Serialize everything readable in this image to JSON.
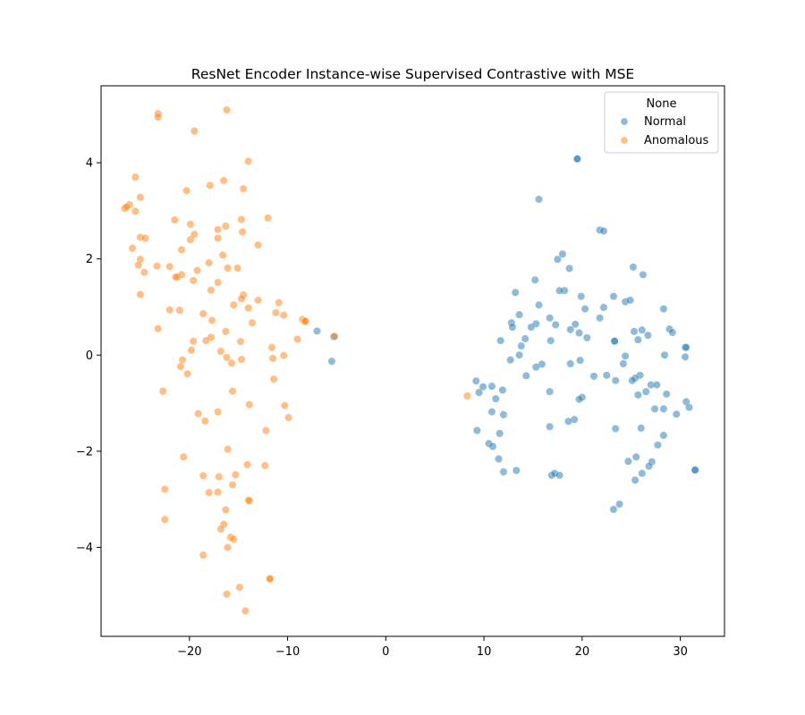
{
  "chart_data": {
    "type": "scatter",
    "title": "ResNet Encoder Instance-wise Supervised Contrastive with MSE",
    "xlabel": "",
    "ylabel": "",
    "xlim": [
      -29,
      34.5
    ],
    "ylim": [
      -5.85,
      5.6
    ],
    "xticks": [
      -20,
      -10,
      0,
      10,
      20,
      30
    ],
    "yticks": [
      -4,
      -2,
      0,
      2,
      4
    ],
    "x_tick_labels": [
      "−20",
      "−10",
      "0",
      "10",
      "20",
      "30"
    ],
    "y_tick_labels": [
      "−4",
      "−2",
      "0",
      "2",
      "4"
    ],
    "grid": false,
    "legend": {
      "title": "None",
      "placement": "top-right",
      "entries": [
        "Normal",
        "Anomalous"
      ]
    },
    "colors": {
      "Normal": "#1f77b4",
      "Anomalous": "#ff7f0e"
    },
    "marker_alpha": 0.5,
    "series": [
      {
        "name": "Normal",
        "points": [
          [
            19.5,
            4.08
          ],
          [
            19.5,
            4.08
          ],
          [
            15.6,
            3.24
          ],
          [
            21.8,
            2.6
          ],
          [
            22.2,
            2.58
          ],
          [
            18.0,
            2.1
          ],
          [
            17.5,
            1.99
          ],
          [
            25.2,
            1.83
          ],
          [
            18.7,
            1.8
          ],
          [
            26.2,
            1.67
          ],
          [
            15.2,
            1.56
          ],
          [
            13.2,
            1.3
          ],
          [
            18.2,
            1.34
          ],
          [
            17.7,
            1.34
          ],
          [
            19.9,
            1.22
          ],
          [
            23.2,
            1.22
          ],
          [
            24.4,
            1.11
          ],
          [
            24.9,
            1.14
          ],
          [
            15.6,
            1.04
          ],
          [
            20.3,
            0.96
          ],
          [
            22.2,
            0.99
          ],
          [
            28.3,
            0.96
          ],
          [
            13.6,
            0.84
          ],
          [
            16.7,
            0.77
          ],
          [
            21.8,
            0.77
          ],
          [
            12.8,
            0.67
          ],
          [
            15.3,
            0.65
          ],
          [
            17.3,
            0.63
          ],
          [
            19.3,
            0.64
          ],
          [
            12.9,
            0.58
          ],
          [
            14.8,
            0.58
          ],
          [
            18.8,
            0.53
          ],
          [
            25.3,
            0.49
          ],
          [
            26.1,
            0.52
          ],
          [
            28.9,
            0.54
          ],
          [
            19.7,
            0.46
          ],
          [
            29.2,
            0.47
          ],
          [
            26.7,
            0.41
          ],
          [
            14.2,
            0.34
          ],
          [
            20.5,
            0.36
          ],
          [
            11.7,
            0.3
          ],
          [
            16.8,
            0.3
          ],
          [
            23.3,
            0.29
          ],
          [
            23.3,
            0.29
          ],
          [
            25.7,
            0.32
          ],
          [
            13.8,
            0.19
          ],
          [
            30.5,
            0.16
          ],
          [
            30.6,
            0.16
          ],
          [
            13.6,
            0.0
          ],
          [
            24.4,
            -0.02
          ],
          [
            28.4,
            0.0
          ],
          [
            30.5,
            -0.04
          ],
          [
            12.7,
            -0.1
          ],
          [
            19.8,
            -0.11
          ],
          [
            15.9,
            -0.19
          ],
          [
            18.8,
            -0.18
          ],
          [
            24.2,
            -0.18
          ],
          [
            15.3,
            -0.25
          ],
          [
            21.2,
            -0.44
          ],
          [
            14.3,
            -0.43
          ],
          [
            22.5,
            -0.42
          ],
          [
            25.9,
            -0.42
          ],
          [
            9.2,
            -0.54
          ],
          [
            23.4,
            -0.53
          ],
          [
            25.4,
            -0.48
          ],
          [
            25.1,
            -0.53
          ],
          [
            9.9,
            -0.66
          ],
          [
            10.8,
            -0.65
          ],
          [
            27.0,
            -0.62
          ],
          [
            27.6,
            -0.62
          ],
          [
            9.5,
            -0.78
          ],
          [
            11.9,
            -0.73
          ],
          [
            16.7,
            -0.76
          ],
          [
            26.5,
            -0.76
          ],
          [
            20.0,
            -0.88
          ],
          [
            19.7,
            -0.92
          ],
          [
            25.7,
            -0.83
          ],
          [
            28.6,
            -0.81
          ],
          [
            11.2,
            -0.91
          ],
          [
            30.6,
            -0.97
          ],
          [
            10.8,
            -1.18
          ],
          [
            12.0,
            -1.24
          ],
          [
            19.2,
            -1.34
          ],
          [
            18.6,
            -1.38
          ],
          [
            27.4,
            -1.12
          ],
          [
            28.3,
            -1.12
          ],
          [
            29.6,
            -1.23
          ],
          [
            30.9,
            -1.09
          ],
          [
            9.3,
            -1.57
          ],
          [
            11.6,
            -1.63
          ],
          [
            16.7,
            -1.49
          ],
          [
            23.4,
            -1.53
          ],
          [
            26.0,
            -1.52
          ],
          [
            28.3,
            -1.67
          ],
          [
            10.5,
            -1.84
          ],
          [
            10.9,
            -1.9
          ],
          [
            27.7,
            -1.87
          ],
          [
            11.5,
            -2.16
          ],
          [
            24.7,
            -2.21
          ],
          [
            25.5,
            -2.12
          ],
          [
            27.1,
            -2.22
          ],
          [
            26.8,
            -2.31
          ],
          [
            12.0,
            -2.43
          ],
          [
            13.3,
            -2.4
          ],
          [
            16.9,
            -2.5
          ],
          [
            17.2,
            -2.46
          ],
          [
            17.7,
            -2.5
          ],
          [
            26.1,
            -2.46
          ],
          [
            25.4,
            -2.6
          ],
          [
            31.5,
            -2.39
          ],
          [
            31.5,
            -2.39
          ],
          [
            23.8,
            -3.1
          ],
          [
            23.2,
            -3.21
          ],
          [
            -7.0,
            0.5
          ],
          [
            -5.3,
            0.38
          ],
          [
            -5.5,
            -0.13
          ]
        ]
      },
      {
        "name": "Anomalous",
        "points": [
          [
            -16.2,
            5.1
          ],
          [
            -23.2,
            5.02
          ],
          [
            -23.2,
            4.95
          ],
          [
            -19.5,
            4.66
          ],
          [
            -14.0,
            4.03
          ],
          [
            -25.5,
            3.7
          ],
          [
            -16.5,
            3.63
          ],
          [
            -14.5,
            3.46
          ],
          [
            -17.9,
            3.53
          ],
          [
            -20.3,
            3.42
          ],
          [
            -25.0,
            3.28
          ],
          [
            -26.1,
            3.13
          ],
          [
            -26.6,
            3.05
          ],
          [
            -26.4,
            3.08
          ],
          [
            -25.5,
            2.99
          ],
          [
            -12.0,
            2.85
          ],
          [
            -14.7,
            2.82
          ],
          [
            -21.5,
            2.81
          ],
          [
            -19.9,
            2.72
          ],
          [
            -16.3,
            2.68
          ],
          [
            -17.1,
            2.61
          ],
          [
            -14.6,
            2.56
          ],
          [
            -19.5,
            2.51
          ],
          [
            -25.0,
            2.45
          ],
          [
            -24.5,
            2.43
          ],
          [
            -19.9,
            2.4
          ],
          [
            -17.1,
            2.43
          ],
          [
            -13.0,
            2.29
          ],
          [
            -25.8,
            2.22
          ],
          [
            -20.8,
            2.19
          ],
          [
            -16.6,
            2.08
          ],
          [
            -25.0,
            1.99
          ],
          [
            -18.0,
            1.92
          ],
          [
            -25.2,
            1.87
          ],
          [
            -23.3,
            1.85
          ],
          [
            -22.0,
            1.84
          ],
          [
            -16.1,
            1.81
          ],
          [
            -15.1,
            1.81
          ],
          [
            -19.2,
            1.76
          ],
          [
            -24.6,
            1.72
          ],
          [
            -20.8,
            1.67
          ],
          [
            -21.2,
            1.63
          ],
          [
            -21.4,
            1.62
          ],
          [
            -19.6,
            1.55
          ],
          [
            -17.1,
            1.51
          ],
          [
            -17.8,
            1.35
          ],
          [
            -25.0,
            1.26
          ],
          [
            -14.5,
            1.25
          ],
          [
            -14.7,
            1.17
          ],
          [
            -13.0,
            1.14
          ],
          [
            -10.9,
            1.09
          ],
          [
            -15.5,
            1.04
          ],
          [
            -14.0,
            0.98
          ],
          [
            -22.0,
            0.94
          ],
          [
            -21.0,
            0.93
          ],
          [
            -11.2,
            0.88
          ],
          [
            -18.6,
            0.86
          ],
          [
            -10.4,
            0.83
          ],
          [
            -8.5,
            0.74
          ],
          [
            -8.2,
            0.71
          ],
          [
            -8.2,
            0.7
          ],
          [
            -17.7,
            0.72
          ],
          [
            -13.6,
            0.67
          ],
          [
            -23.2,
            0.55
          ],
          [
            -16.3,
            0.49
          ],
          [
            -5.2,
            0.39
          ],
          [
            -17.8,
            0.37
          ],
          [
            -18.3,
            0.3
          ],
          [
            -19.6,
            0.29
          ],
          [
            -14.8,
            0.28
          ],
          [
            -9.0,
            0.33
          ],
          [
            -11.6,
            0.16
          ],
          [
            -19.8,
            0.1
          ],
          [
            -16.8,
            0.08
          ],
          [
            -16.2,
            -0.05
          ],
          [
            -11.5,
            -0.07
          ],
          [
            -14.7,
            -0.09
          ],
          [
            -10.4,
            -0.01
          ],
          [
            -20.7,
            -0.1
          ],
          [
            -15.7,
            -0.17
          ],
          [
            -20.9,
            -0.24
          ],
          [
            -20.2,
            -0.39
          ],
          [
            -11.4,
            -0.5
          ],
          [
            -22.7,
            -0.75
          ],
          [
            -15.6,
            -0.75
          ],
          [
            -13.9,
            -1.03
          ],
          [
            -10.3,
            -1.05
          ],
          [
            -19.1,
            -1.22
          ],
          [
            -17.1,
            -1.18
          ],
          [
            -9.9,
            -1.3
          ],
          [
            -18.4,
            -1.37
          ],
          [
            -12.2,
            -1.57
          ],
          [
            -16.1,
            -1.96
          ],
          [
            -20.6,
            -2.12
          ],
          [
            -14.1,
            -2.28
          ],
          [
            -12.3,
            -2.3
          ],
          [
            -18.6,
            -2.51
          ],
          [
            -17.0,
            -2.53
          ],
          [
            -15.3,
            -2.49
          ],
          [
            -15.6,
            -2.7
          ],
          [
            -22.5,
            -2.79
          ],
          [
            -18.0,
            -2.86
          ],
          [
            -17.1,
            -2.85
          ],
          [
            -14.0,
            -3.02
          ],
          [
            -13.9,
            -3.03
          ],
          [
            -16.3,
            -3.22
          ],
          [
            -22.5,
            -3.42
          ],
          [
            -16.5,
            -3.52
          ],
          [
            -16.8,
            -3.62
          ],
          [
            -15.8,
            -3.79
          ],
          [
            -15.5,
            -3.83
          ],
          [
            -16.1,
            -4.0
          ],
          [
            -18.6,
            -4.16
          ],
          [
            -11.8,
            -4.66
          ],
          [
            -11.8,
            -4.65
          ],
          [
            -14.9,
            -4.83
          ],
          [
            -16.2,
            -4.97
          ],
          [
            -14.3,
            -5.32
          ],
          [
            8.3,
            -0.85
          ]
        ]
      }
    ]
  }
}
